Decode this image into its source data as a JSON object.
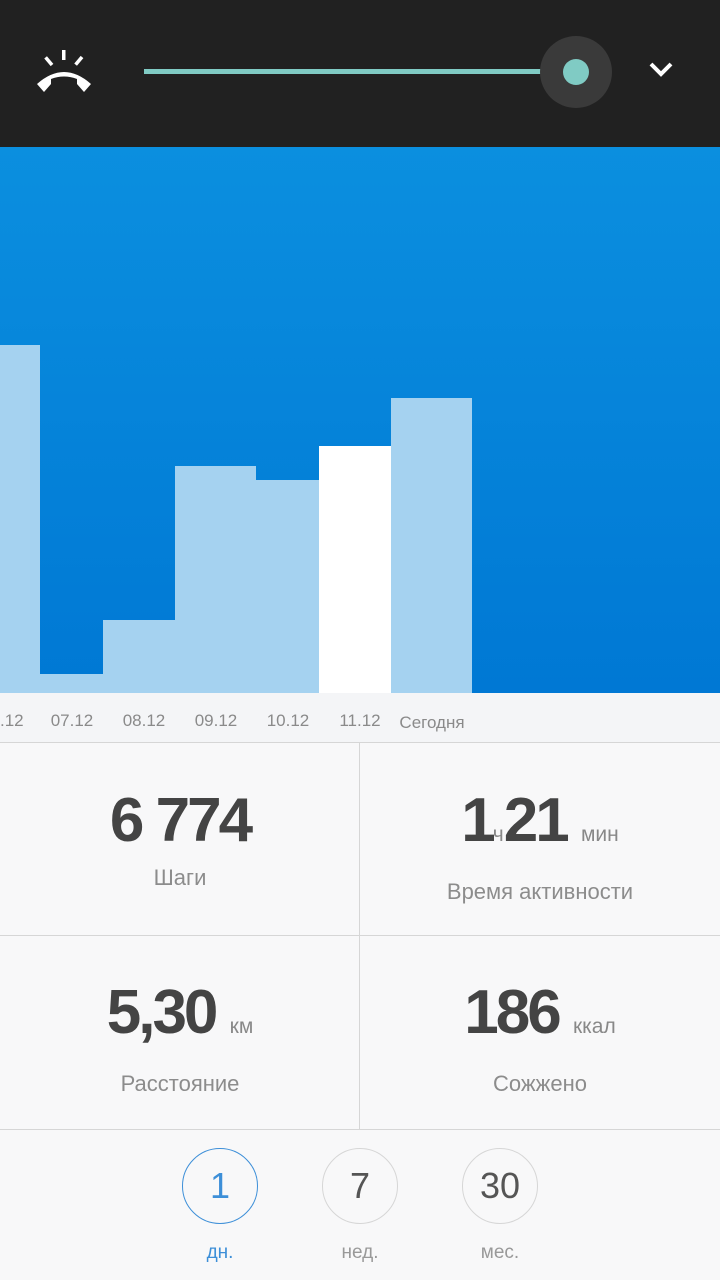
{
  "header": {
    "icons": [
      "phone-hangup-icon",
      "chevron-down-icon"
    ],
    "slider_value_percent": 100,
    "accent": "#80cbc4"
  },
  "chart_data": {
    "type": "bar",
    "categories": [
      ".12",
      "07.12",
      "08.12",
      "09.12",
      "10.12",
      "11.12",
      "Сегодня"
    ],
    "values": [
      8000,
      440,
      1680,
      5220,
      4880,
      5680,
      6774
    ],
    "selected_index": 5,
    "colors": {
      "background": "#0a8adc",
      "bar": "#a5d2f0",
      "selected": "#ffffff"
    }
  },
  "stats": {
    "steps": {
      "value": "6 774",
      "label": "Шаги"
    },
    "active": {
      "hours": "1",
      "hours_unit": "ч",
      "minutes": "21",
      "minutes_unit": "мин",
      "label": "Время активности"
    },
    "distance": {
      "value": "5,30",
      "unit": "км",
      "label": "Расстояние"
    },
    "burned": {
      "value": "186",
      "unit": "ккал",
      "label": "Сожжено"
    }
  },
  "periods": [
    {
      "num": "1",
      "label": "дн.",
      "active": true
    },
    {
      "num": "7",
      "label": "нед.",
      "active": false
    },
    {
      "num": "30",
      "label": "мес.",
      "active": false
    }
  ]
}
